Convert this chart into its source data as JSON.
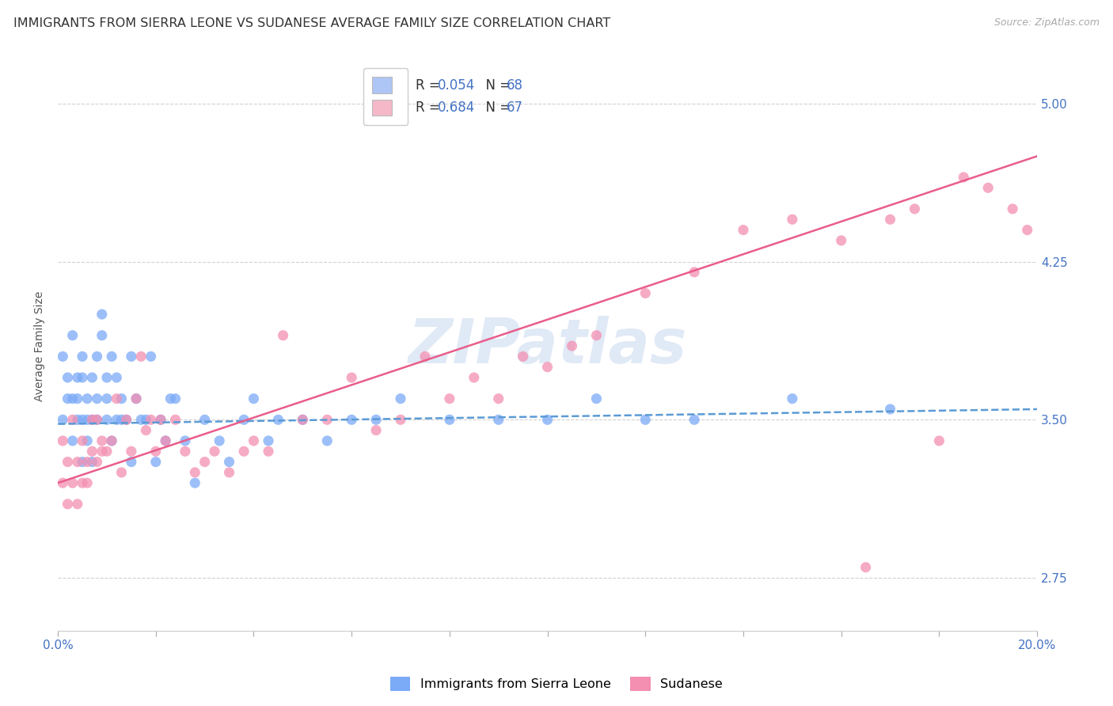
{
  "title": "IMMIGRANTS FROM SIERRA LEONE VS SUDANESE AVERAGE FAMILY SIZE CORRELATION CHART",
  "source": "Source: ZipAtlas.com",
  "ylabel": "Average Family Size",
  "yticks": [
    2.75,
    3.5,
    4.25,
    5.0
  ],
  "xlim": [
    0.0,
    0.2
  ],
  "ylim": [
    2.5,
    5.2
  ],
  "legend_entries": [
    {
      "label_r": "R = 0.054",
      "label_n": "N = 68",
      "color": "#aec6f5"
    },
    {
      "label_r": "R = 0.684",
      "label_n": "N = 67",
      "color": "#f5b8c8"
    }
  ],
  "series1_label": "Immigrants from Sierra Leone",
  "series2_label": "Sudanese",
  "series1_color": "#7baaf7",
  "series2_color": "#f48fb1",
  "series1_line_color": "#5b9bd5",
  "series2_line_color": "#e85d8a",
  "watermark": "ZIPatlas",
  "title_fontsize": 11.5,
  "axis_label_fontsize": 10,
  "tick_fontsize": 11,
  "source_fontsize": 9,
  "series1_x": [
    0.001,
    0.001,
    0.002,
    0.002,
    0.003,
    0.003,
    0.003,
    0.004,
    0.004,
    0.004,
    0.005,
    0.005,
    0.005,
    0.005,
    0.006,
    0.006,
    0.006,
    0.007,
    0.007,
    0.007,
    0.008,
    0.008,
    0.008,
    0.009,
    0.009,
    0.01,
    0.01,
    0.01,
    0.011,
    0.011,
    0.012,
    0.012,
    0.013,
    0.013,
    0.014,
    0.015,
    0.015,
    0.016,
    0.017,
    0.018,
    0.019,
    0.02,
    0.021,
    0.022,
    0.023,
    0.024,
    0.026,
    0.028,
    0.03,
    0.033,
    0.035,
    0.038,
    0.04,
    0.043,
    0.045,
    0.05,
    0.055,
    0.06,
    0.065,
    0.07,
    0.08,
    0.09,
    0.1,
    0.11,
    0.12,
    0.13,
    0.15,
    0.17
  ],
  "series1_y": [
    3.5,
    3.8,
    3.6,
    3.7,
    3.4,
    3.6,
    3.9,
    3.5,
    3.7,
    3.6,
    3.3,
    3.5,
    3.7,
    3.8,
    3.4,
    3.6,
    3.5,
    3.3,
    3.7,
    3.5,
    3.5,
    3.8,
    3.6,
    3.9,
    4.0,
    3.5,
    3.7,
    3.6,
    3.4,
    3.8,
    3.5,
    3.7,
    3.6,
    3.5,
    3.5,
    3.3,
    3.8,
    3.6,
    3.5,
    3.5,
    3.8,
    3.3,
    3.5,
    3.4,
    3.6,
    3.6,
    3.4,
    3.2,
    3.5,
    3.4,
    3.3,
    3.5,
    3.6,
    3.4,
    3.5,
    3.5,
    3.4,
    3.5,
    3.5,
    3.6,
    3.5,
    3.5,
    3.5,
    3.6,
    3.5,
    3.5,
    3.6,
    3.55
  ],
  "series2_x": [
    0.001,
    0.001,
    0.002,
    0.002,
    0.003,
    0.003,
    0.004,
    0.004,
    0.005,
    0.005,
    0.006,
    0.006,
    0.007,
    0.007,
    0.008,
    0.008,
    0.009,
    0.009,
    0.01,
    0.011,
    0.012,
    0.013,
    0.014,
    0.015,
    0.016,
    0.017,
    0.018,
    0.019,
    0.02,
    0.021,
    0.022,
    0.024,
    0.026,
    0.028,
    0.03,
    0.032,
    0.035,
    0.038,
    0.04,
    0.043,
    0.046,
    0.05,
    0.055,
    0.06,
    0.065,
    0.07,
    0.075,
    0.08,
    0.085,
    0.09,
    0.095,
    0.1,
    0.105,
    0.11,
    0.12,
    0.13,
    0.14,
    0.15,
    0.16,
    0.165,
    0.17,
    0.175,
    0.18,
    0.185,
    0.19,
    0.195,
    0.198
  ],
  "series2_y": [
    3.2,
    3.4,
    3.1,
    3.3,
    3.2,
    3.5,
    3.1,
    3.3,
    3.2,
    3.4,
    3.3,
    3.2,
    3.5,
    3.35,
    3.3,
    3.5,
    3.4,
    3.35,
    3.35,
    3.4,
    3.6,
    3.25,
    3.5,
    3.35,
    3.6,
    3.8,
    3.45,
    3.5,
    3.35,
    3.5,
    3.4,
    3.5,
    3.35,
    3.25,
    3.3,
    3.35,
    3.25,
    3.35,
    3.4,
    3.35,
    3.9,
    3.5,
    3.5,
    3.7,
    3.45,
    3.5,
    3.8,
    3.6,
    3.7,
    3.6,
    3.8,
    3.75,
    3.85,
    3.9,
    4.1,
    4.2,
    4.4,
    4.45,
    4.35,
    2.8,
    4.45,
    4.5,
    3.4,
    4.65,
    4.6,
    4.5,
    4.4
  ],
  "series2_line_y_at_0": 3.2,
  "series2_line_y_at_20": 4.75,
  "series1_line_y_at_0": 3.48,
  "series1_line_y_at_20": 3.55
}
